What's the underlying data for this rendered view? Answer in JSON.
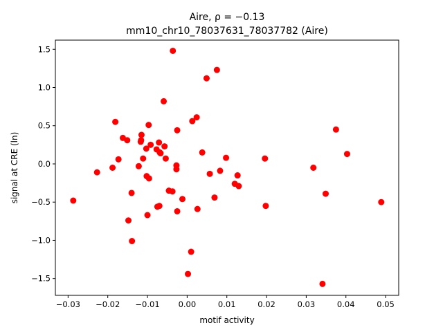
{
  "chart_data": {
    "type": "scatter",
    "title_line1": "Aire, ρ = −0.13",
    "title_line2": "mm10_chr10_78037631_78037782 (Aire)",
    "xlabel": "motif activity",
    "ylabel": "signal at CRE (ln)",
    "xlim": [
      -0.0332,
      0.0533
    ],
    "ylim": [
      -1.72,
      1.62
    ],
    "xticks": [
      -0.03,
      -0.02,
      -0.01,
      0.0,
      0.01,
      0.02,
      0.03,
      0.04,
      0.05
    ],
    "xtick_labels": [
      "−0.03",
      "−0.02",
      "−0.01",
      "0.00",
      "0.01",
      "0.02",
      "0.03",
      "0.04",
      "0.05"
    ],
    "yticks": [
      -1.5,
      -1.0,
      -0.5,
      0.0,
      0.5,
      1.0,
      1.5
    ],
    "ytick_labels": [
      "−1.5",
      "−1.0",
      "−0.5",
      "0.0",
      "0.5",
      "1.0",
      "1.5"
    ],
    "grid": false,
    "marker_color": "#ff0000",
    "x": [
      -0.0287,
      -0.0227,
      -0.0188,
      -0.0181,
      -0.0173,
      -0.0162,
      -0.0151,
      -0.0148,
      -0.014,
      -0.0139,
      -0.0122,
      -0.0117,
      -0.0116,
      -0.0115,
      -0.0111,
      -0.0103,
      -0.0102,
      -0.01,
      -0.0097,
      -0.0096,
      -0.0092,
      -0.0077,
      -0.0075,
      -0.0071,
      -0.007,
      -0.0069,
      -0.0067,
      -0.0059,
      -0.0057,
      -0.0054,
      -0.0046,
      -0.0036,
      -0.0037,
      -0.0027,
      -0.0027,
      -0.0025,
      -0.0025,
      -0.0012,
      0.0002,
      0.001,
      0.0013,
      0.0024,
      0.0026,
      0.0038,
      0.0049,
      0.0057,
      0.0069,
      0.0075,
      0.0083,
      0.0098,
      0.012,
      0.0127,
      0.013,
      0.0196,
      0.0198,
      0.0318,
      0.0341,
      0.0349,
      0.0375,
      0.0403,
      0.0489
    ],
    "y": [
      -0.48,
      -0.11,
      -0.05,
      0.55,
      0.06,
      0.34,
      0.31,
      -0.74,
      -0.38,
      -1.01,
      -0.03,
      0.29,
      0.31,
      0.38,
      0.07,
      0.2,
      -0.16,
      -0.67,
      0.51,
      -0.19,
      0.25,
      0.19,
      -0.56,
      0.28,
      -0.55,
      0.15,
      0.14,
      0.82,
      0.23,
      0.07,
      -0.35,
      1.48,
      -0.36,
      -0.02,
      -0.07,
      0.44,
      -0.62,
      -0.46,
      -1.44,
      -1.15,
      0.56,
      0.61,
      -0.59,
      0.15,
      1.12,
      -0.13,
      -0.44,
      1.23,
      -0.09,
      0.08,
      -0.26,
      -0.15,
      -0.29,
      0.07,
      -0.55,
      -0.05,
      -1.57,
      -0.39,
      0.45,
      0.13,
      -0.5
    ]
  }
}
